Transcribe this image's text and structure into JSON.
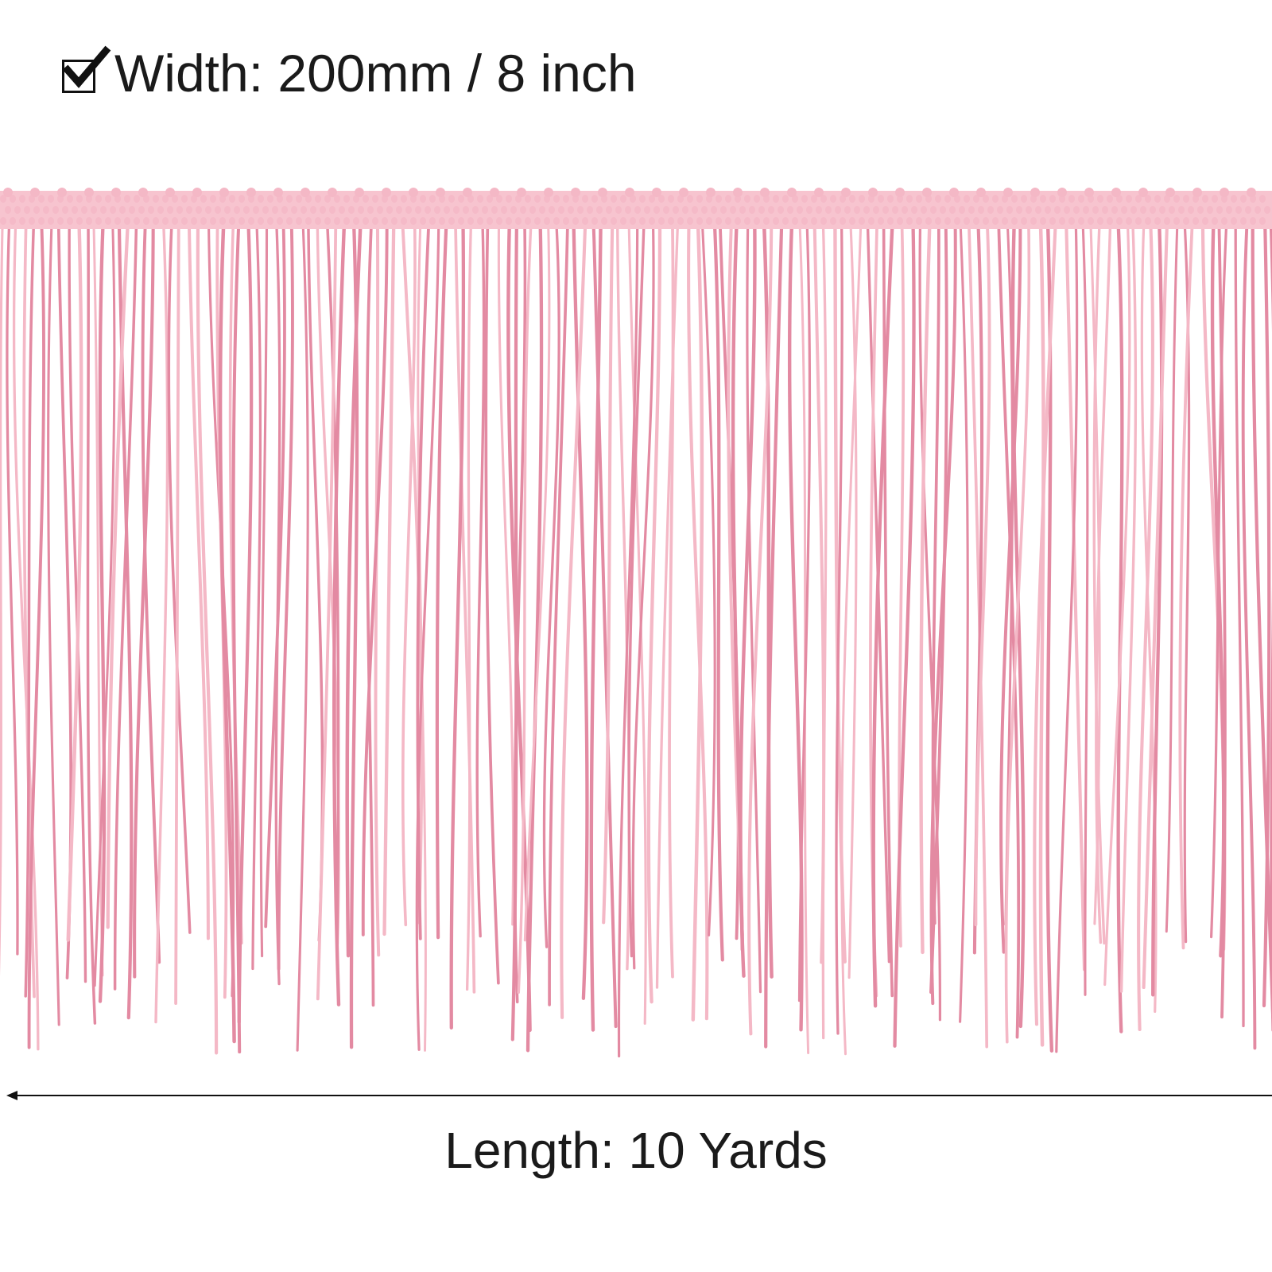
{
  "width_spec": {
    "text": "Width: 200mm / 8 inch",
    "icon": "checkbox-checked-icon"
  },
  "length_spec": {
    "text": "Length: 10 Yards",
    "icon": "left-arrow-icon"
  },
  "product": {
    "colors": {
      "fringe_light": "#f4b8c6",
      "fringe_dark": "#e38aa2",
      "band": "#f7c4cf"
    }
  }
}
